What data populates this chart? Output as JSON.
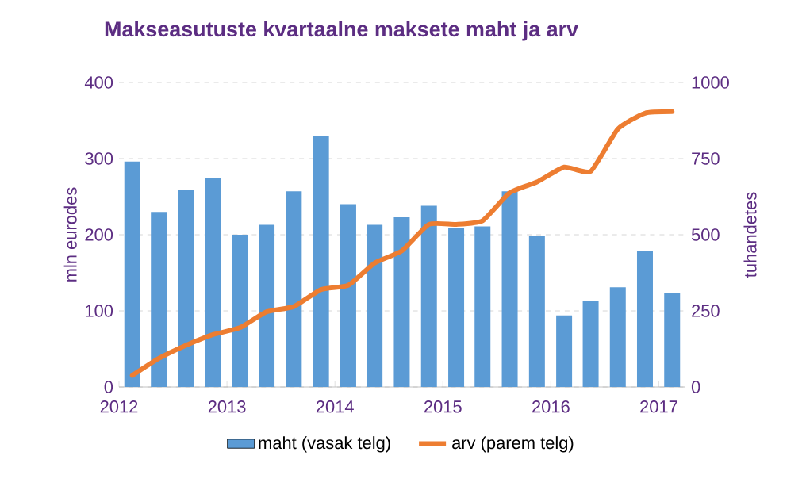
{
  "chart_data": {
    "type": "bar",
    "title": "Makseasutuste kvartaalne maksete maht ja arv",
    "ylabel": "mln eurodes",
    "y2label": "tuhandetes",
    "x": [
      "2012-02-15",
      "2012-05-15",
      "2012-08-15",
      "2012-11-15",
      "2013-02-15",
      "2013-05-15",
      "2013-08-15",
      "2013-11-15",
      "2014-02-15",
      "2014-05-15",
      "2014-08-15",
      "2014-11-15",
      "2015-02-15",
      "2015-05-15",
      "2015-08-15",
      "2015-11-15",
      "2016-02-15",
      "2016-05-15",
      "2016-08-15",
      "2016-11-15",
      "2017-02-15"
    ],
    "series": [
      {
        "name": "maht (vasak telg)",
        "color": "#5b9bd5",
        "values": [
          296,
          230,
          259,
          275,
          200,
          213,
          257,
          330,
          240,
          213,
          223,
          238,
          209,
          211,
          257,
          199,
          94,
          113,
          131,
          179,
          123
        ]
      },
      {
        "name": "arv (parem telg)",
        "type": "line",
        "axis": "y2",
        "color": "#ed7d31",
        "values": [
          38,
          94,
          137,
          172,
          195,
          247,
          264,
          320,
          334,
          407,
          447,
          534,
          534,
          546,
          638,
          673,
          722,
          708,
          847,
          899,
          904
        ]
      }
    ],
    "xlim": [
      "2012-01-01",
      "2017-04-01"
    ],
    "xticks": [
      {
        "value": "2012-01-01",
        "label": "2012"
      },
      {
        "value": "2013-01-01",
        "label": "2013"
      },
      {
        "value": "2014-01-01",
        "label": "2014"
      },
      {
        "value": "2015-01-01",
        "label": "2015"
      },
      {
        "value": "2016-01-01",
        "label": "2016"
      },
      {
        "value": "2017-01-01",
        "label": "2017"
      }
    ],
    "ylim": [
      0,
      400
    ],
    "yticks": [
      0,
      100,
      200,
      300,
      400
    ],
    "y2lim": [
      0,
      1000
    ],
    "y2ticks": [
      0,
      250,
      500,
      750,
      1000
    ],
    "grid": "y",
    "legend": "bottom",
    "marker": "none",
    "line_style": "solid"
  }
}
